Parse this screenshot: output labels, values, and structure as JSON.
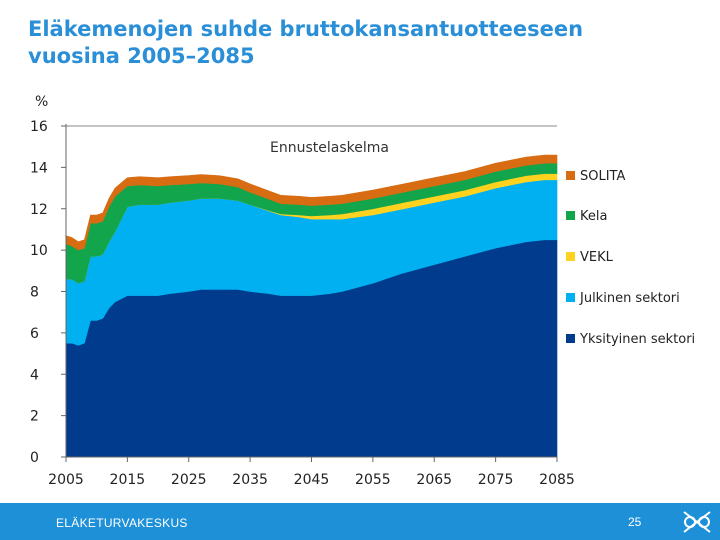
{
  "title_line1": "Eläkemenojen suhde bruttokansantuotteeseen",
  "title_line2": "vuosina 2005–2085",
  "footer": {
    "brand": "ELÄKETURVAKESKUS",
    "page": "25",
    "logo_icon": "ets-logo-icon"
  },
  "colors": {
    "title": "#2a8fd6",
    "footer": "#1e90d8",
    "yksityinen": "#003b8e",
    "julkinen": "#00b0f0",
    "vekl": "#ffd21f",
    "kela": "#13a54b",
    "solita": "#d86c12"
  },
  "chart_data": {
    "type": "area",
    "stacked": true,
    "ylabel": "%",
    "annotation": "Ennustelaskelma",
    "ylim": [
      0,
      16
    ],
    "yticks": [
      0,
      2,
      4,
      6,
      8,
      10,
      12,
      14,
      16
    ],
    "xlim": [
      2005,
      2085
    ],
    "xticks": [
      2005,
      2015,
      2025,
      2035,
      2045,
      2055,
      2065,
      2075,
      2085
    ],
    "grid": "top-line-only",
    "legend_position": "right",
    "x": [
      2005,
      2006,
      2007,
      2008,
      2009,
      2010,
      2011,
      2012,
      2013,
      2015,
      2017,
      2020,
      2022,
      2025,
      2027,
      2030,
      2033,
      2035,
      2038,
      2040,
      2043,
      2045,
      2048,
      2050,
      2055,
      2060,
      2065,
      2070,
      2075,
      2080,
      2083,
      2085
    ],
    "series": [
      {
        "name": "Yksityinen sektori",
        "color": "#003b8e",
        "values": [
          5.5,
          5.5,
          5.4,
          5.5,
          6.6,
          6.6,
          6.7,
          7.2,
          7.5,
          7.8,
          7.8,
          7.8,
          7.9,
          8.0,
          8.1,
          8.1,
          8.1,
          8.0,
          7.9,
          7.8,
          7.8,
          7.8,
          7.9,
          8.0,
          8.4,
          8.9,
          9.3,
          9.7,
          10.1,
          10.4,
          10.5,
          10.5
        ]
      },
      {
        "name": "Julkinen sektori",
        "color": "#00b0f0",
        "values": [
          3.1,
          3.1,
          3.0,
          3.0,
          3.1,
          3.1,
          3.1,
          3.2,
          3.4,
          4.3,
          4.4,
          4.4,
          4.4,
          4.4,
          4.4,
          4.4,
          4.3,
          4.2,
          4.0,
          3.9,
          3.8,
          3.7,
          3.6,
          3.5,
          3.3,
          3.1,
          3.0,
          2.9,
          2.9,
          2.9,
          2.9,
          2.9
        ]
      },
      {
        "name": "VEKL",
        "color": "#ffd21f",
        "values": [
          0.0,
          0.0,
          0.0,
          0.0,
          0.0,
          0.0,
          0.0,
          0.0,
          0.0,
          0.0,
          0.0,
          0.0,
          0.0,
          0.0,
          0.0,
          0.0,
          0.0,
          0.0,
          0.02,
          0.05,
          0.1,
          0.15,
          0.2,
          0.25,
          0.3,
          0.3,
          0.3,
          0.3,
          0.3,
          0.3,
          0.3,
          0.3
        ]
      },
      {
        "name": "Kela",
        "color": "#13a54b",
        "values": [
          1.7,
          1.6,
          1.6,
          1.6,
          1.6,
          1.6,
          1.6,
          1.7,
          1.7,
          1.0,
          0.95,
          0.9,
          0.85,
          0.8,
          0.75,
          0.7,
          0.65,
          0.6,
          0.55,
          0.5,
          0.5,
          0.5,
          0.5,
          0.5,
          0.5,
          0.5,
          0.5,
          0.5,
          0.5,
          0.5,
          0.5,
          0.5
        ]
      },
      {
        "name": "SOLITA",
        "color": "#d86c12",
        "values": [
          0.4,
          0.4,
          0.4,
          0.4,
          0.4,
          0.4,
          0.4,
          0.4,
          0.4,
          0.4,
          0.4,
          0.4,
          0.4,
          0.4,
          0.4,
          0.4,
          0.4,
          0.4,
          0.4,
          0.4,
          0.4,
          0.4,
          0.4,
          0.4,
          0.4,
          0.4,
          0.4,
          0.4,
          0.4,
          0.4,
          0.4,
          0.4
        ]
      }
    ],
    "legend_order": [
      "SOLITA",
      "Kela",
      "VEKL",
      "Julkinen sektori",
      "Yksityinen sektori"
    ]
  }
}
